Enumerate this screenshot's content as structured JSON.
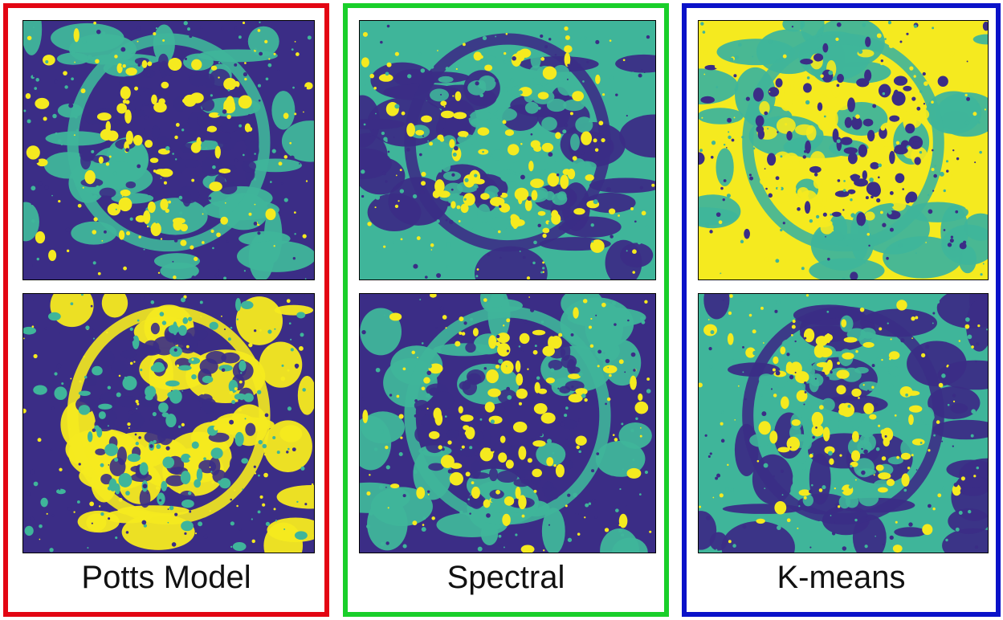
{
  "colors": {
    "dark": "#3b2d86",
    "teal": "#3fb59a",
    "yellow": "#f5ea1f"
  },
  "panels": [
    {
      "label": "Potts Model",
      "border_color": "#e30613",
      "tiles": [
        {
          "background": "dark",
          "blob": "teal",
          "spot": "yellow"
        },
        {
          "background": "dark",
          "blob": "yellow",
          "spot": "teal"
        }
      ]
    },
    {
      "label": "Spectral",
      "border_color": "#19cf2a",
      "tiles": [
        {
          "background": "teal",
          "blob": "dark",
          "spot": "yellow"
        },
        {
          "background": "dark",
          "blob": "teal",
          "spot": "yellow"
        }
      ]
    },
    {
      "label": "K-means",
      "border_color": "#0a12c9",
      "tiles": [
        {
          "background": "yellow",
          "blob": "teal",
          "spot": "dark"
        },
        {
          "background": "teal",
          "blob": "dark",
          "spot": "yellow"
        }
      ]
    }
  ]
}
